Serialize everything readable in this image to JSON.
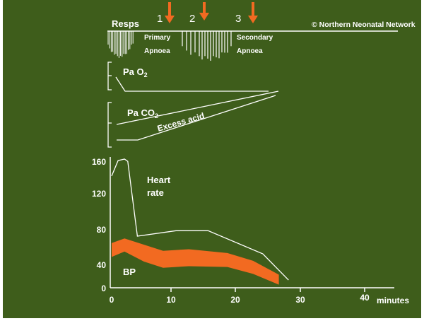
{
  "colors": {
    "background": "#3e5d1b",
    "lines": "#ffffff",
    "accent": "#f26a21"
  },
  "copyright": "© Northern Neonatal Network",
  "resps": {
    "label": "Resps",
    "primary_label": [
      "Primary",
      "Apnoea"
    ],
    "secondary_label": [
      "Secondary",
      "Apnoea"
    ]
  },
  "markers": [
    "1",
    "2",
    "3"
  ],
  "traces": {
    "pao2": {
      "label_main": "Pa O",
      "label_sub": "2"
    },
    "paco2": {
      "label_main": "Pa CO",
      "label_sub": "2"
    },
    "excess_acid": "Excess acid"
  },
  "heart_rate_label": [
    "Heart",
    "rate"
  ],
  "bp_label": "BP",
  "y_ticks": [
    "160",
    "120",
    "80",
    "40",
    "0"
  ],
  "x_ticks": [
    "0",
    "10",
    "20",
    "30",
    "40"
  ],
  "x_unit": "minutes",
  "chart_data": {
    "type": "line",
    "x_label": "minutes",
    "ylim": [
      0,
      170
    ],
    "xlim": [
      0,
      45
    ],
    "series": [
      {
        "name": "Heart rate",
        "x": [
          0,
          1,
          2,
          2.5,
          4,
          10,
          15,
          23.5,
          27.5
        ],
        "y": [
          145,
          165,
          167,
          164,
          67,
          74,
          74,
          44,
          10
        ]
      },
      {
        "name": "BP",
        "x": [
          0,
          2,
          5,
          8,
          12,
          18,
          22,
          26
        ],
        "upper": [
          58,
          64,
          56,
          48,
          50,
          45,
          35,
          17
        ],
        "lower": [
          40,
          47,
          34,
          26,
          28,
          27,
          18,
          4
        ]
      }
    ]
  }
}
